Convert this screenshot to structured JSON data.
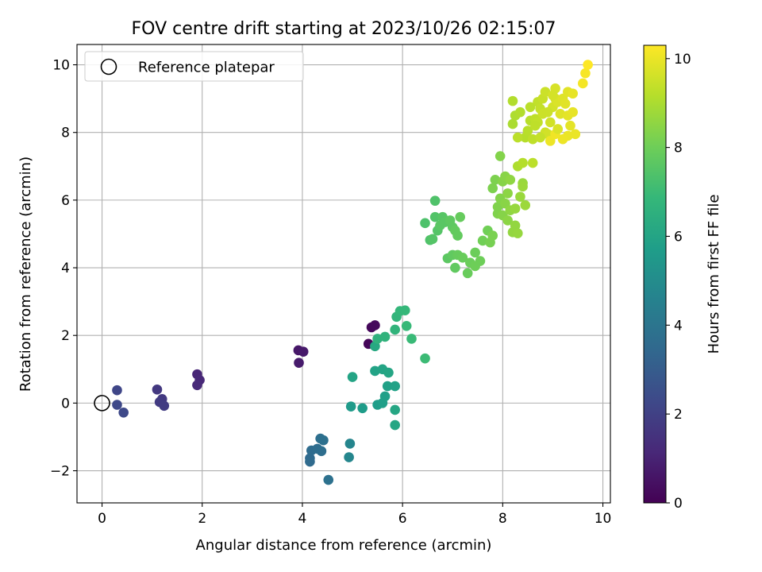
{
  "chart_data": {
    "type": "scatter",
    "title": "FOV centre drift starting at 2023/10/26 02:15:07",
    "xlabel": "Angular distance from reference (arcmin)",
    "ylabel": "Rotation from reference (arcmin)",
    "xlim": [
      -0.5,
      10.15
    ],
    "ylim": [
      -2.95,
      10.6
    ],
    "xticks": [
      "0",
      "2",
      "4",
      "6",
      "8",
      "10"
    ],
    "yticks": [
      "−2",
      "0",
      "2",
      "4",
      "6",
      "8",
      "10"
    ],
    "grid": true,
    "legend": {
      "placement": "top-left",
      "entries": [
        "Reference platepar"
      ]
    },
    "reference_point": {
      "x": 0,
      "y": 0,
      "marker": "open-circle"
    },
    "colorbar": {
      "label": "Hours from first FF file",
      "colormap": "viridis",
      "range": [
        0,
        10.3
      ],
      "ticks": [
        "0",
        "2",
        "4",
        "6",
        "8",
        "10"
      ]
    },
    "colormap_stops": [
      "#440154",
      "#482878",
      "#3e4989",
      "#31688e",
      "#26828e",
      "#1f9e89",
      "#35b779",
      "#6ece58",
      "#b5de2b",
      "#fde725"
    ],
    "series": [
      {
        "points": [
          [
            5.32,
            1.75,
            0.15
          ],
          [
            5.38,
            2.24,
            0.2
          ],
          [
            5.45,
            2.3,
            0.25
          ],
          [
            3.92,
            1.56,
            0.65
          ],
          [
            4.02,
            1.52,
            0.7
          ],
          [
            3.93,
            1.19,
            0.75
          ],
          [
            1.9,
            0.85,
            1.1
          ],
          [
            1.95,
            0.68,
            1.15
          ],
          [
            1.9,
            0.53,
            1.2
          ],
          [
            1.1,
            0.4,
            1.7
          ],
          [
            1.2,
            0.12,
            1.75
          ],
          [
            1.15,
            0.03,
            1.8
          ],
          [
            1.24,
            -0.08,
            1.85
          ],
          [
            0.3,
            0.38,
            2.2
          ],
          [
            0.3,
            -0.05,
            2.25
          ],
          [
            0.43,
            -0.28,
            2.3
          ],
          [
            4.15,
            -1.63,
            3.5
          ],
          [
            4.15,
            -1.73,
            3.55
          ],
          [
            4.18,
            -1.4,
            3.6
          ],
          [
            4.3,
            -1.35,
            3.65
          ],
          [
            4.38,
            -1.42,
            3.7
          ],
          [
            4.36,
            -1.05,
            3.75
          ],
          [
            4.42,
            -1.1,
            3.8
          ],
          [
            4.52,
            -2.27,
            3.85
          ],
          [
            4.95,
            -1.2,
            4.7
          ],
          [
            4.93,
            -1.6,
            4.75
          ],
          [
            4.97,
            -0.1,
            5.6
          ],
          [
            5.2,
            -0.15,
            5.65
          ],
          [
            5.5,
            -0.05,
            5.7
          ],
          [
            5.6,
            0.0,
            5.75
          ],
          [
            5.65,
            0.2,
            5.8
          ],
          [
            5.7,
            0.5,
            5.85
          ],
          [
            5.85,
            0.5,
            5.9
          ],
          [
            5.45,
            0.95,
            5.95
          ],
          [
            5.6,
            1.0,
            6.0
          ],
          [
            5.72,
            0.9,
            6.05
          ],
          [
            5.85,
            -0.2,
            6.1
          ],
          [
            5.85,
            -0.65,
            6.1
          ],
          [
            5.0,
            0.77,
            6.0
          ],
          [
            5.45,
            1.68,
            6.2
          ],
          [
            5.5,
            1.9,
            6.6
          ],
          [
            5.65,
            1.96,
            6.65
          ],
          [
            5.85,
            2.17,
            6.7
          ],
          [
            5.88,
            2.55,
            6.75
          ],
          [
            5.95,
            2.72,
            6.8
          ],
          [
            6.05,
            2.74,
            6.85
          ],
          [
            6.08,
            2.28,
            6.9
          ],
          [
            6.18,
            1.9,
            6.95
          ],
          [
            6.45,
            1.32,
            7.0
          ],
          [
            6.45,
            5.32,
            7.35
          ],
          [
            6.55,
            4.82,
            7.4
          ],
          [
            6.65,
            5.98,
            7.4
          ],
          [
            6.65,
            5.5,
            7.45
          ],
          [
            6.7,
            5.1,
            7.5
          ],
          [
            6.6,
            4.85,
            7.5
          ],
          [
            6.8,
            5.5,
            7.55
          ],
          [
            6.75,
            5.25,
            7.6
          ],
          [
            6.85,
            5.35,
            7.6
          ],
          [
            6.9,
            4.28,
            7.65
          ],
          [
            6.95,
            5.4,
            7.7
          ],
          [
            7.0,
            5.2,
            7.7
          ],
          [
            7.0,
            4.38,
            7.75
          ],
          [
            7.05,
            4.0,
            7.75
          ],
          [
            7.05,
            5.1,
            7.8
          ],
          [
            7.1,
            4.95,
            7.8
          ],
          [
            7.1,
            4.38,
            7.85
          ],
          [
            7.15,
            5.5,
            7.85
          ],
          [
            7.2,
            4.3,
            7.9
          ],
          [
            7.3,
            3.84,
            7.9
          ],
          [
            7.35,
            4.15,
            7.95
          ],
          [
            7.45,
            4.45,
            7.95
          ],
          [
            7.55,
            4.2,
            8.0
          ],
          [
            7.45,
            4.05,
            8.0
          ],
          [
            7.6,
            4.8,
            8.05
          ],
          [
            7.7,
            5.1,
            8.05
          ],
          [
            7.75,
            4.75,
            8.15
          ],
          [
            7.8,
            4.95,
            8.2
          ],
          [
            7.8,
            6.35,
            8.25
          ],
          [
            7.85,
            6.6,
            8.25
          ],
          [
            7.9,
            5.6,
            8.3
          ],
          [
            7.9,
            5.8,
            8.3
          ],
          [
            7.95,
            6.05,
            8.35
          ],
          [
            7.95,
            7.3,
            8.35
          ],
          [
            8.0,
            5.55,
            8.4
          ],
          [
            8.0,
            6.55,
            8.4
          ],
          [
            8.05,
            6.7,
            8.45
          ],
          [
            8.05,
            5.9,
            8.45
          ],
          [
            8.1,
            5.4,
            8.5
          ],
          [
            8.1,
            6.2,
            8.5
          ],
          [
            8.15,
            5.7,
            8.55
          ],
          [
            8.15,
            6.6,
            8.55
          ],
          [
            8.2,
            5.05,
            8.6
          ],
          [
            8.25,
            5.25,
            8.6
          ],
          [
            8.25,
            5.75,
            8.65
          ],
          [
            8.3,
            5.02,
            8.65
          ],
          [
            8.35,
            6.1,
            8.7
          ],
          [
            8.4,
            6.5,
            8.7
          ],
          [
            8.45,
            5.85,
            8.75
          ],
          [
            8.4,
            6.4,
            8.75
          ],
          [
            8.2,
            8.25,
            9.0
          ],
          [
            8.3,
            7.0,
            9.05
          ],
          [
            8.25,
            8.5,
            9.05
          ],
          [
            8.2,
            8.93,
            9.1
          ],
          [
            8.35,
            8.6,
            9.1
          ],
          [
            8.4,
            7.1,
            9.15
          ],
          [
            8.45,
            7.85,
            9.15
          ],
          [
            8.5,
            8.05,
            9.2
          ],
          [
            8.55,
            8.35,
            9.2
          ],
          [
            8.6,
            7.1,
            9.25
          ],
          [
            8.3,
            7.85,
            9.25
          ],
          [
            8.6,
            7.8,
            9.3
          ],
          [
            8.65,
            8.4,
            9.3
          ],
          [
            8.7,
            8.9,
            9.35
          ],
          [
            8.75,
            8.7,
            9.4
          ],
          [
            8.8,
            9.0,
            9.45
          ],
          [
            8.85,
            9.2,
            9.5
          ],
          [
            8.8,
            8.55,
            9.5
          ],
          [
            8.85,
            8.0,
            9.55
          ],
          [
            8.9,
            7.95,
            9.6
          ],
          [
            8.95,
            8.3,
            9.6
          ],
          [
            9.0,
            8.75,
            9.65
          ],
          [
            9.05,
            9.0,
            9.7
          ],
          [
            9.05,
            9.3,
            9.7
          ],
          [
            9.1,
            8.9,
            9.75
          ],
          [
            9.15,
            8.55,
            9.8
          ],
          [
            9.2,
            9.0,
            9.8
          ],
          [
            9.25,
            8.85,
            9.85
          ],
          [
            9.3,
            9.2,
            9.85
          ],
          [
            9.3,
            8.5,
            9.9
          ],
          [
            9.35,
            8.2,
            9.9
          ],
          [
            9.4,
            8.6,
            9.95
          ],
          [
            9.45,
            7.95,
            10.0
          ],
          [
            9.3,
            7.9,
            10.0
          ],
          [
            9.2,
            7.8,
            10.05
          ],
          [
            8.95,
            7.75,
            10.05
          ],
          [
            9.05,
            7.95,
            10.1
          ],
          [
            9.6,
            9.45,
            10.15
          ],
          [
            9.65,
            9.75,
            10.2
          ],
          [
            9.7,
            10.0,
            10.3
          ],
          [
            8.7,
            8.3,
            9.35
          ],
          [
            8.9,
            8.6,
            9.5
          ],
          [
            9.1,
            8.1,
            9.75
          ],
          [
            8.55,
            8.75,
            9.25
          ],
          [
            8.75,
            7.85,
            9.4
          ],
          [
            9.0,
            9.1,
            9.65
          ],
          [
            9.4,
            9.15,
            9.95
          ],
          [
            8.65,
            8.2,
            9.3
          ]
        ]
      }
    ]
  }
}
